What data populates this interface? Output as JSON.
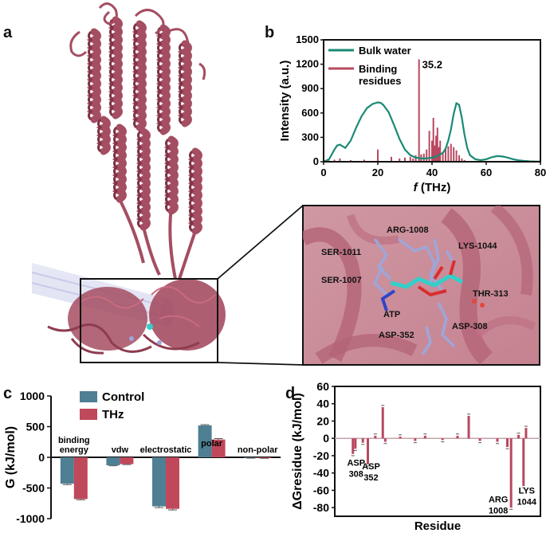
{
  "panels": {
    "a": "a",
    "b": "b",
    "c": "c",
    "d": "d"
  },
  "protein_labels": {
    "residues": [
      "ARG-1008",
      "LYS-1044",
      "SER-1011",
      "SER-1007",
      "THR-313",
      "ATP",
      "ASP-352",
      "ASP-308"
    ]
  },
  "colors": {
    "protein": "#a54d62",
    "bulk_water": "#1a8a75",
    "binding": "#b8485f",
    "control": "#4f7f93",
    "thz": "#c0485b",
    "ligand_residues": "#9ea6d9",
    "atp": "#33cfc9"
  },
  "chart_data": [
    {
      "id": "b",
      "type": "line",
      "xlabel_italic": "f",
      "xlabel": " (THz)",
      "ylabel": "Intensity (a.u.)",
      "xlim": [
        0,
        80
      ],
      "ylim": [
        0,
        1500
      ],
      "xticks": [
        "0",
        "20",
        "40",
        "60",
        "80"
      ],
      "yticks": [
        "0",
        "300",
        "600",
        "900",
        "1200",
        "1500"
      ],
      "annotation": "35.2",
      "legend": [
        "Bulk water",
        "Binding",
        "residues"
      ],
      "series": [
        {
          "name": "Bulk water",
          "x": [
            0,
            2,
            4,
            5,
            6,
            7,
            8,
            10,
            12,
            14,
            16,
            18,
            20,
            21,
            22,
            24,
            26,
            28,
            30,
            32,
            34,
            36,
            38,
            40,
            42,
            44,
            45,
            46,
            47,
            48,
            49,
            50,
            51,
            52,
            53,
            54,
            56,
            58,
            60,
            62,
            64,
            66,
            68,
            70,
            72,
            74,
            76,
            78,
            80
          ],
          "y": [
            0,
            30,
            150,
            200,
            210,
            190,
            170,
            260,
            420,
            560,
            660,
            710,
            730,
            725,
            700,
            610,
            450,
            280,
            150,
            80,
            50,
            40,
            40,
            50,
            70,
            110,
            160,
            260,
            400,
            590,
            720,
            700,
            540,
            330,
            170,
            80,
            30,
            20,
            30,
            55,
            70,
            65,
            50,
            30,
            18,
            10,
            5,
            3,
            2
          ]
        },
        {
          "name": "Binding residues",
          "x": [
            2,
            4,
            6,
            10,
            15,
            20,
            25,
            28,
            30,
            32,
            33,
            34,
            35.2,
            36,
            37,
            38,
            39,
            40,
            40.5,
            41,
            41.5,
            42,
            42.5,
            43,
            44,
            45,
            46,
            47,
            48,
            49,
            50,
            51,
            52
          ],
          "y": [
            15,
            25,
            40,
            20,
            25,
            150,
            60,
            40,
            50,
            60,
            40,
            80,
            1260,
            90,
            100,
            150,
            380,
            260,
            540,
            200,
            320,
            420,
            180,
            260,
            120,
            160,
            190,
            220,
            180,
            140,
            80,
            40,
            20
          ]
        }
      ]
    },
    {
      "id": "c",
      "type": "bar",
      "ylabel": "G (kJ/mol)",
      "ylim": [
        -1000,
        1000
      ],
      "yticks": [
        "1000",
        "500",
        "0",
        "-500",
        "-1000"
      ],
      "categories": [
        "binding energy",
        "vdw",
        "electrostatic",
        "polar",
        "non-polar"
      ],
      "category_lines": [
        [
          "binding",
          "energy"
        ],
        [
          "vdw"
        ],
        [
          "electrostatic"
        ],
        [
          "polar"
        ],
        [
          "non-polar"
        ]
      ],
      "series": [
        {
          "name": "Control",
          "values": [
            -430,
            -130,
            -800,
            520,
            -12
          ],
          "err": [
            15,
            8,
            20,
            12,
            2
          ]
        },
        {
          "name": "THz",
          "values": [
            -680,
            -110,
            -840,
            290,
            -14
          ],
          "err": [
            12,
            8,
            18,
            15,
            2
          ]
        }
      ]
    },
    {
      "id": "d",
      "type": "bar",
      "xlabel": "Residue",
      "ylabel": "ΔGresidue (kJ/mol)",
      "ylim": [
        -90,
        60
      ],
      "yticks": [
        "60",
        "40",
        "20",
        "0",
        "-20",
        "-40",
        "-60",
        "-80"
      ],
      "annotations": [
        [
          "ASP",
          "308"
        ],
        [
          "ASP",
          "352"
        ],
        [
          "ARG",
          "1008"
        ],
        [
          "LYS",
          "1044"
        ]
      ],
      "values": [
        [
          12,
          -18
        ],
        [
          14,
          -12
        ],
        [
          20,
          -5
        ],
        [
          24,
          -30
        ],
        [
          30,
          3
        ],
        [
          36,
          36
        ],
        [
          38,
          -4
        ],
        [
          50,
          2
        ],
        [
          62,
          -3
        ],
        [
          70,
          3
        ],
        [
          84,
          -2
        ],
        [
          96,
          3
        ],
        [
          105,
          26
        ],
        [
          114,
          -3
        ],
        [
          128,
          -4
        ],
        [
          136,
          -10
        ],
        [
          139,
          -80
        ],
        [
          145,
          4
        ],
        [
          149,
          -55
        ],
        [
          151,
          12
        ]
      ]
    }
  ]
}
